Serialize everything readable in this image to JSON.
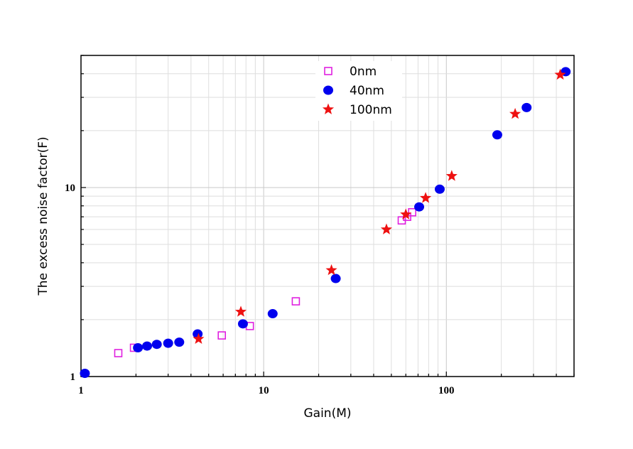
{
  "chart_data": {
    "type": "scatter",
    "xlabel": "Gain(M)",
    "ylabel": "The excess noise factor(F)",
    "xscale": "log",
    "yscale": "log",
    "xlim": [
      1,
      500
    ],
    "ylim": [
      1,
      50
    ],
    "xticks": [
      1,
      10,
      100
    ],
    "xtick_labels": [
      "1",
      "10",
      "100"
    ],
    "yticks": [
      1,
      10
    ],
    "ytick_labels": [
      "1",
      "10"
    ],
    "grid": true,
    "legend_position": "top-center",
    "series": [
      {
        "name": "0nm",
        "marker": "open-square",
        "color": "#e020e0",
        "x": [
          1.6,
          1.95,
          5.9,
          8.4,
          15,
          57,
          61,
          65
        ],
        "y": [
          1.33,
          1.42,
          1.65,
          1.85,
          2.5,
          6.7,
          7.0,
          7.4
        ]
      },
      {
        "name": "40nm",
        "marker": "filled-circle",
        "color": "#0000ee",
        "x": [
          1.05,
          2.05,
          2.3,
          2.6,
          3.0,
          3.45,
          4.35,
          7.7,
          11.2,
          24.8,
          71,
          92,
          190,
          275,
          450
        ],
        "y": [
          1.04,
          1.42,
          1.45,
          1.48,
          1.5,
          1.52,
          1.68,
          1.9,
          2.15,
          3.3,
          7.9,
          9.8,
          19,
          26.5,
          41
        ]
      },
      {
        "name": "100nm",
        "marker": "filled-star",
        "color": "#ee1111",
        "x": [
          4.4,
          7.5,
          23.5,
          47,
          60,
          77,
          107,
          238,
          420
        ],
        "y": [
          1.58,
          2.2,
          3.65,
          6.0,
          7.2,
          8.8,
          11.5,
          24.5,
          39.5
        ]
      }
    ]
  }
}
